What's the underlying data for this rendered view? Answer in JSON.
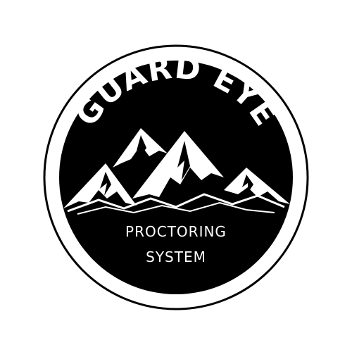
{
  "logo": {
    "brand_name": "GUARD EYE",
    "tagline_line1": "PROCTORING",
    "tagline_line2": "SYSTEM",
    "icon": "mountains-icon",
    "colors": {
      "background": "#ffffff",
      "badge": "#000000",
      "foreground": "#ffffff"
    }
  }
}
